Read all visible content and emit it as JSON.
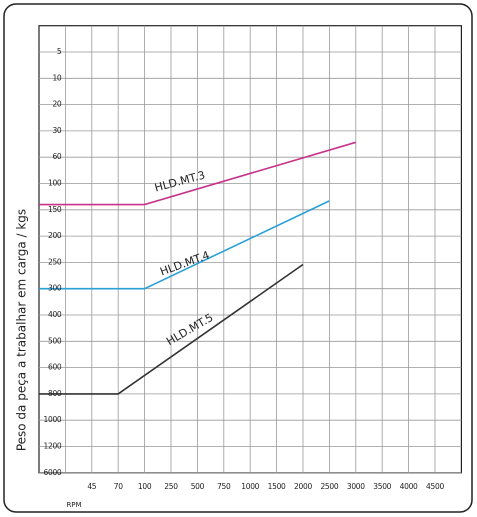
{
  "chart_data": {
    "type": "line",
    "x_label": "RPM",
    "y_label": "Peso da peça a trabalhar em carga / kgs",
    "xlim": [
      0,
      5000
    ],
    "xticks": [
      45,
      70,
      100,
      250,
      500,
      750,
      1000,
      1500,
      2000,
      2500,
      3000,
      3500,
      4000,
      4500
    ],
    "ylim": [
      0,
      6000
    ],
    "yticks": [
      5,
      10,
      20,
      30,
      60,
      100,
      150,
      200,
      250,
      300,
      400,
      500,
      600,
      800,
      1000,
      1200,
      6000
    ],
    "y_inverted": true,
    "grid": true,
    "series": [
      {
        "name": "HLD.MT.3",
        "color": "#c8338a",
        "x": [
          0,
          100,
          3000
        ],
        "values": [
          140,
          140,
          43
        ]
      },
      {
        "name": "HLD.MT.4",
        "color": "#2aa0d8",
        "x": [
          0,
          100,
          2500
        ],
        "values": [
          300,
          300,
          133
        ]
      },
      {
        "name": "HLD.MT.5",
        "color": "#333333",
        "x": [
          0,
          70,
          2000
        ],
        "values": [
          800,
          800,
          254
        ]
      }
    ]
  }
}
